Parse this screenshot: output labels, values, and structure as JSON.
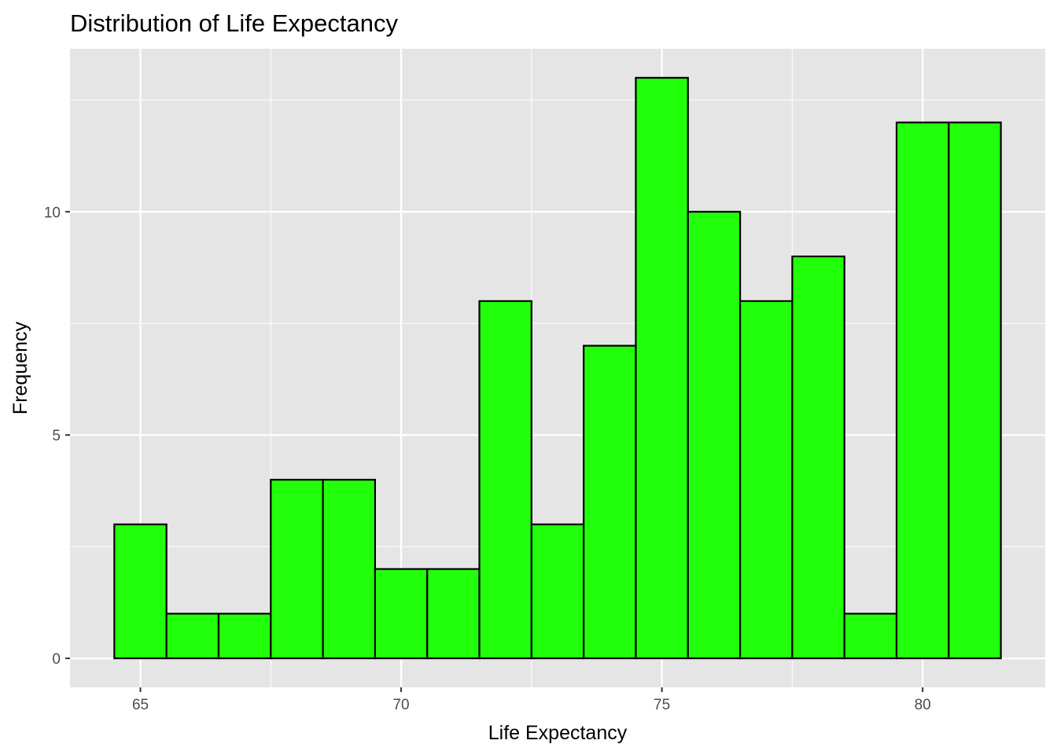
{
  "chart_data": {
    "type": "bar",
    "subtype": "histogram",
    "title": "Distribution of Life Expectancy",
    "xlabel": "Life Expectancy",
    "ylabel": "Frequency",
    "bin_width": 1,
    "bins": [
      {
        "x0": 64.5,
        "x1": 65.5,
        "count": 3
      },
      {
        "x0": 65.5,
        "x1": 66.5,
        "count": 1
      },
      {
        "x0": 66.5,
        "x1": 67.5,
        "count": 1
      },
      {
        "x0": 67.5,
        "x1": 68.5,
        "count": 4
      },
      {
        "x0": 68.5,
        "x1": 69.5,
        "count": 4
      },
      {
        "x0": 69.5,
        "x1": 70.5,
        "count": 2
      },
      {
        "x0": 70.5,
        "x1": 71.5,
        "count": 2
      },
      {
        "x0": 71.5,
        "x1": 72.5,
        "count": 8
      },
      {
        "x0": 72.5,
        "x1": 73.5,
        "count": 3
      },
      {
        "x0": 73.5,
        "x1": 74.5,
        "count": 7
      },
      {
        "x0": 74.5,
        "x1": 75.5,
        "count": 13
      },
      {
        "x0": 75.5,
        "x1": 76.5,
        "count": 10
      },
      {
        "x0": 76.5,
        "x1": 77.5,
        "count": 8
      },
      {
        "x0": 77.5,
        "x1": 78.5,
        "count": 9
      },
      {
        "x0": 78.5,
        "x1": 79.5,
        "count": 1
      },
      {
        "x0": 79.5,
        "x1": 80.5,
        "count": 12
      },
      {
        "x0": 80.5,
        "x1": 81.5,
        "count": 12
      }
    ],
    "xlim": [
      63.65,
      82.35
    ],
    "ylim": [
      -0.65,
      13.65
    ],
    "x_ticks": [
      65,
      70,
      75,
      80
    ],
    "x_tick_labels": [
      "65",
      "70",
      "75",
      "80"
    ],
    "y_ticks": [
      0,
      5,
      10
    ],
    "y_tick_labels": [
      "0",
      "5",
      "10"
    ],
    "grid": true,
    "legend": "none",
    "colors": {
      "fill": "#22ff0a",
      "outline": "#000000",
      "panel_background": "#e5e5e5",
      "grid": "#ffffff"
    }
  }
}
